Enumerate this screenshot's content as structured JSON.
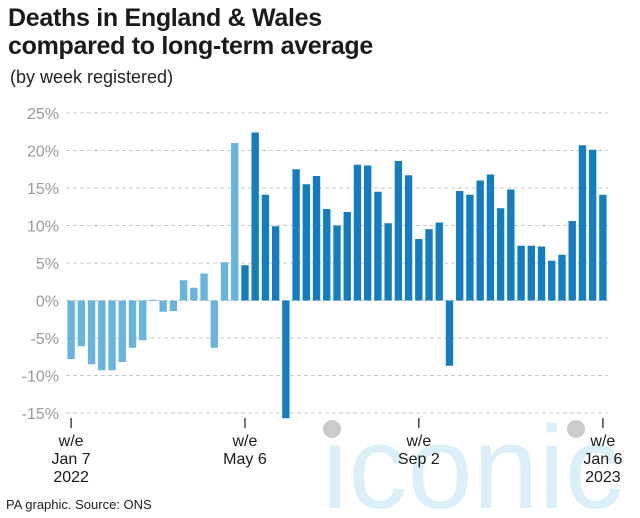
{
  "title_line1": "Deaths in England & Wales",
  "title_line2": "compared to long-term average",
  "subtitle": "(by week registered)",
  "source": "PA graphic. Source: ONS",
  "watermark": "iconic",
  "colors": {
    "pre_may": "#67b4df",
    "post_may": "#137dbf",
    "axis_text": "#9a9a9a",
    "gridline": "#c8c8c8",
    "watermark": "#cfe9f6"
  },
  "chart_data": {
    "type": "bar",
    "title": "Deaths in England & Wales compared to long-term average",
    "subtitle": "(by week registered)",
    "ylabel": "",
    "xlabel": "",
    "ylim": [
      -15,
      25
    ],
    "yticks": [
      25,
      20,
      15,
      10,
      5,
      0,
      -5,
      -10,
      -15
    ],
    "ytick_labels": [
      "25%",
      "20%",
      "15%",
      "10%",
      "5%",
      "0%",
      "-5%",
      "-10%",
      "-15%"
    ],
    "grid": true,
    "x_labels": [
      {
        "index": 0,
        "lines": [
          "w/e",
          "Jan 7",
          "2022"
        ]
      },
      {
        "index": 17,
        "lines": [
          "w/e",
          "May 6"
        ]
      },
      {
        "index": 34,
        "lines": [
          "w/e",
          "Sep 2"
        ]
      },
      {
        "index": 52,
        "lines": [
          "w/e",
          "Jan 6",
          "2023"
        ]
      }
    ],
    "color_split_index": 17,
    "values": [
      -7.8,
      -6.1,
      -8.5,
      -9.3,
      -9.3,
      -8.2,
      -6.3,
      -5.3,
      0.1,
      -1.5,
      -1.4,
      2.7,
      1.7,
      3.6,
      -6.3,
      5.1,
      21.0,
      4.7,
      22.4,
      14.1,
      9.9,
      -15.7,
      17.5,
      15.5,
      16.6,
      12.2,
      10.0,
      11.8,
      18.1,
      18.0,
      14.5,
      10.3,
      18.6,
      16.7,
      8.2,
      9.5,
      10.4,
      -8.7,
      14.6,
      14.1,
      16.0,
      16.8,
      12.3,
      14.8,
      7.3,
      7.3,
      7.2,
      5.3,
      6.1,
      10.6,
      20.7,
      20.1,
      14.1
    ]
  }
}
